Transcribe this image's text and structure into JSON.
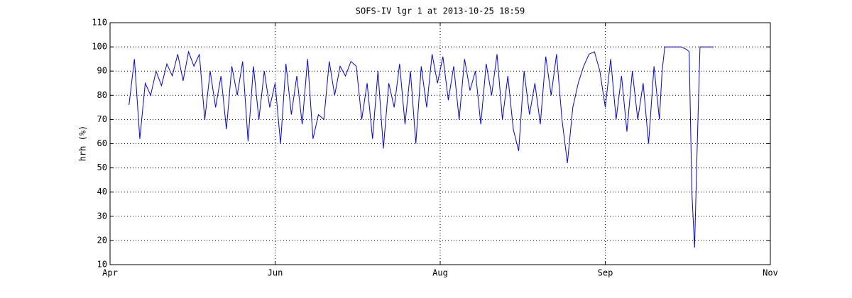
{
  "chart_data": {
    "type": "line",
    "title": "SOFS-IV lgr 1 at 2013-10-25 18:59",
    "ylabel": "hrh (%)",
    "x": [
      7,
      9,
      11,
      13,
      15,
      17,
      19,
      21,
      23,
      25,
      27,
      29,
      31,
      33,
      35,
      37,
      39,
      41,
      43,
      45,
      47,
      49,
      51,
      53,
      55,
      57,
      59,
      61,
      63,
      65,
      67,
      69,
      71,
      73,
      75,
      77,
      79,
      81,
      83,
      85,
      87,
      89,
      91,
      93,
      95,
      97,
      99,
      101,
      103,
      105,
      107,
      109,
      111,
      113,
      115,
      117,
      119,
      121,
      123,
      125,
      127,
      129,
      131,
      133,
      135,
      137,
      139,
      141,
      143,
      145,
      147,
      149,
      151,
      153,
      155,
      157,
      159,
      161,
      163,
      165,
      167,
      169,
      171,
      173,
      175,
      177,
      179,
      181,
      183,
      185,
      187,
      189,
      191,
      193,
      195,
      197,
      199,
      201,
      203,
      204,
      205,
      207,
      209,
      211,
      213,
      214,
      215,
      216,
      217,
      218,
      220,
      223
    ],
    "series": [
      {
        "name": "hrh",
        "color": "#0000ff",
        "values": [
          76,
          95,
          62,
          85,
          80,
          90,
          84,
          93,
          88,
          97,
          86,
          98,
          92,
          97,
          70,
          90,
          75,
          88,
          66,
          92,
          80,
          94,
          61,
          92,
          70,
          90,
          75,
          85,
          60,
          93,
          72,
          88,
          68,
          95,
          62,
          72,
          70,
          94,
          80,
          92,
          88,
          94,
          92,
          70,
          85,
          62,
          90,
          58,
          85,
          75,
          93,
          68,
          90,
          60,
          92,
          75,
          97,
          85,
          96,
          78,
          92,
          70,
          95,
          82,
          90,
          68,
          93,
          80,
          97,
          70,
          88,
          66,
          57,
          90,
          72,
          85,
          68,
          96,
          80,
          97,
          70,
          52,
          75,
          85,
          92,
          97,
          98,
          90,
          75,
          95,
          70,
          88,
          65,
          90,
          70,
          85,
          60,
          92,
          70,
          90,
          100,
          100,
          100,
          100,
          99,
          98,
          40,
          17,
          60,
          100,
          100,
          100
        ]
      }
    ],
    "xlim": [
      0,
      244
    ],
    "xticks": [
      {
        "value": 0,
        "label": "Apr"
      },
      {
        "value": 61,
        "label": "Jun"
      },
      {
        "value": 122,
        "label": "Aug"
      },
      {
        "value": 183,
        "label": "Sep"
      },
      {
        "value": 244,
        "label": "Nov"
      }
    ],
    "ylim": [
      10,
      110
    ],
    "yticks": [
      10,
      20,
      30,
      40,
      50,
      60,
      70,
      80,
      90,
      100,
      110
    ],
    "grid": true
  }
}
